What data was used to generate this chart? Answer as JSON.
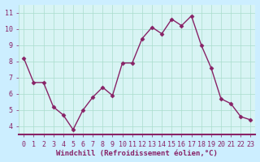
{
  "x": [
    0,
    1,
    2,
    3,
    4,
    5,
    6,
    7,
    8,
    9,
    10,
    11,
    12,
    13,
    14,
    15,
    16,
    17,
    18,
    19,
    20,
    21,
    22,
    23
  ],
  "y": [
    8.2,
    6.7,
    6.7,
    5.2,
    4.7,
    3.8,
    5.0,
    5.8,
    6.4,
    5.9,
    7.9,
    7.9,
    9.4,
    10.1,
    9.7,
    10.6,
    10.2,
    10.8,
    9.0,
    7.6,
    5.7,
    5.4,
    4.6,
    4.4
  ],
  "line_color": "#882266",
  "marker": "D",
  "marker_size": 2.5,
  "bg_color": "#cceeff",
  "plot_bg": "#d8f4f4",
  "grid_color": "#aaddcc",
  "axis_color": "#882266",
  "tick_color": "#882266",
  "xlabel": "Windchill (Refroidissement éolien,°C)",
  "xlabel_fontsize": 6.5,
  "yticks": [
    4,
    5,
    6,
    7,
    8,
    9,
    10,
    11
  ],
  "xticks": [
    0,
    1,
    2,
    3,
    4,
    5,
    6,
    7,
    8,
    9,
    10,
    11,
    12,
    13,
    14,
    15,
    16,
    17,
    18,
    19,
    20,
    21,
    22,
    23
  ],
  "ylim": [
    3.5,
    11.5
  ],
  "xlim": [
    -0.5,
    23.5
  ],
  "tick_fontsize": 6,
  "linewidth": 1.0
}
